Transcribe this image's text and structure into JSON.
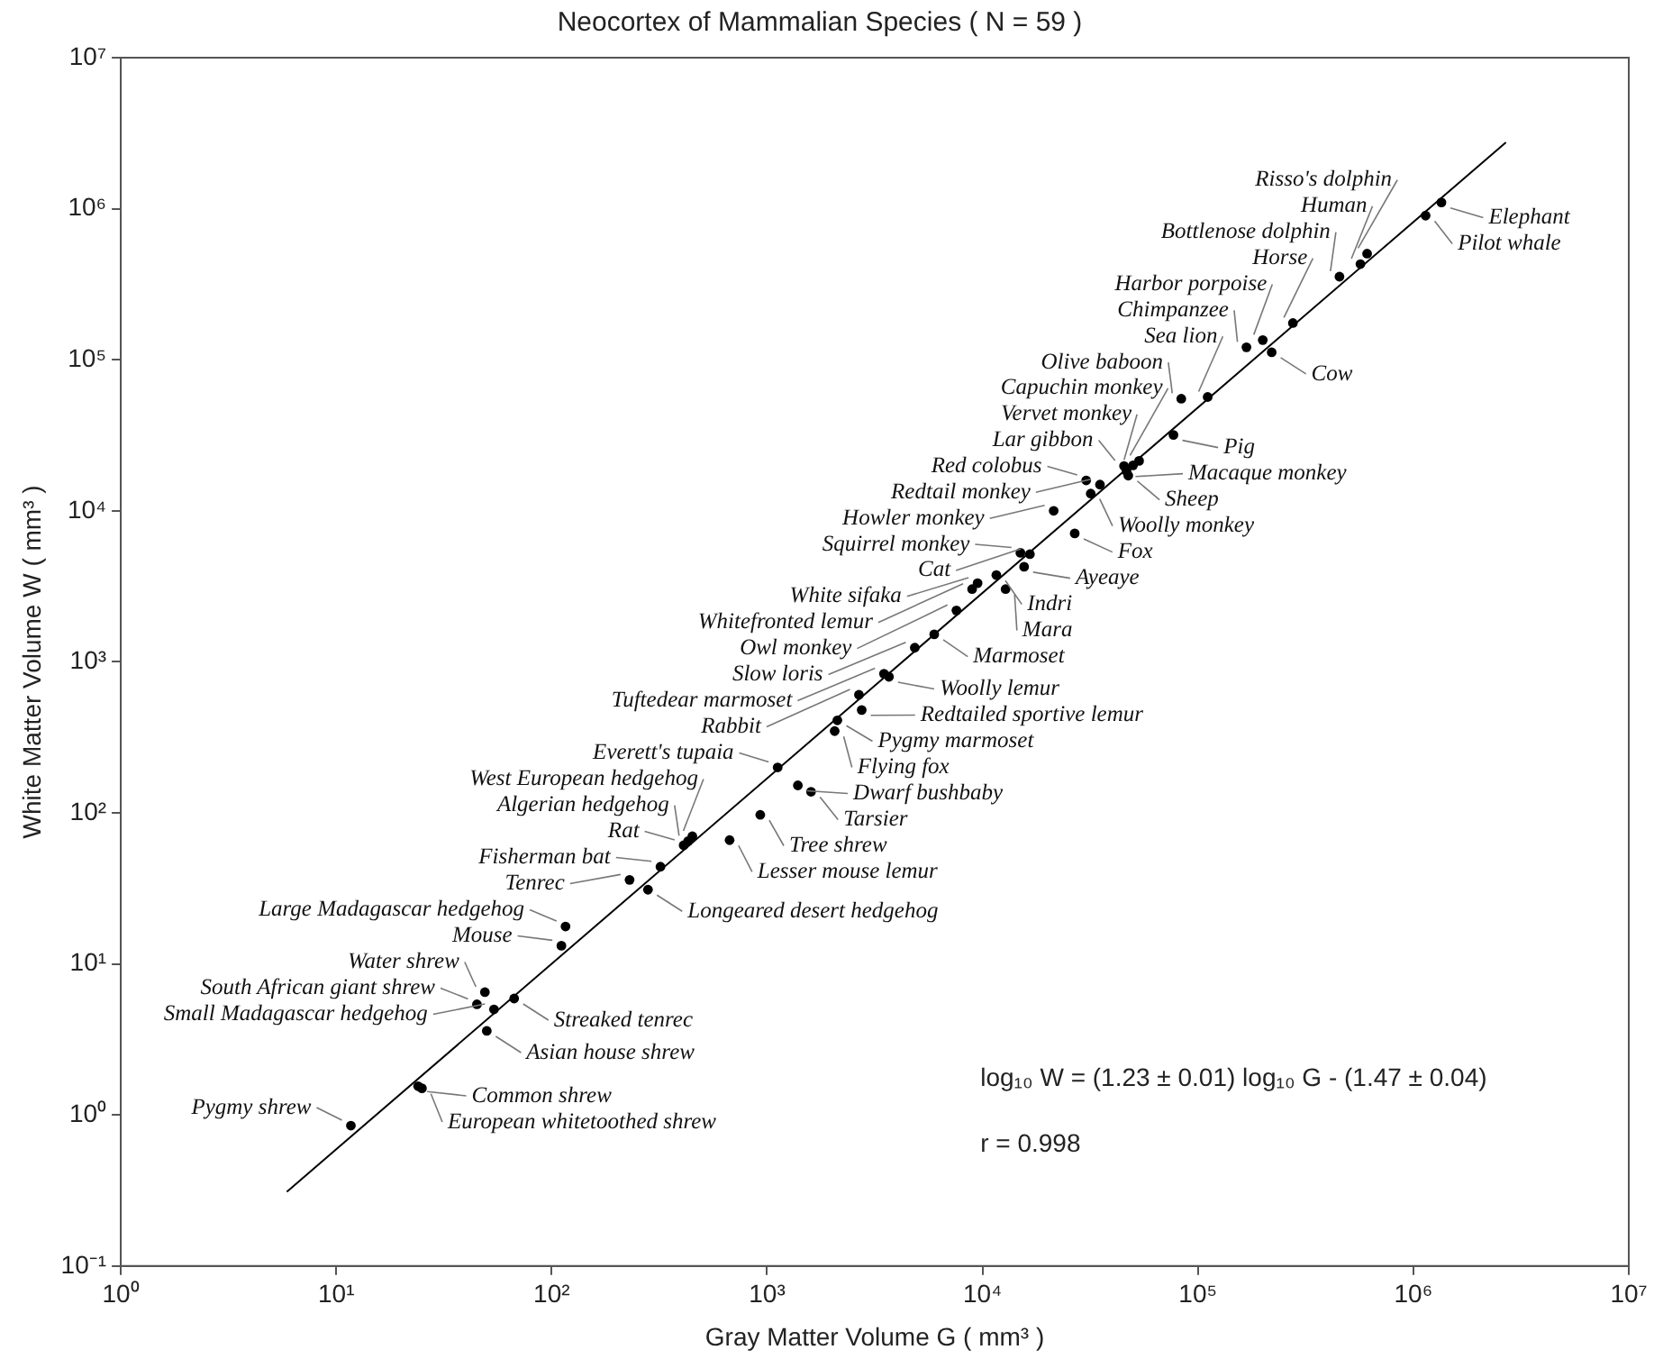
{
  "chart_data": {
    "type": "scatter",
    "title": "Neocortex of Mammalian Species ( N = 59 )",
    "xlabel": "Gray Matter Volume G ( mm³ )",
    "ylabel": "White Matter Volume W ( mm³ )",
    "log": "xy",
    "grid": false,
    "legend": false,
    "marker": "circle",
    "xlim": [
      1,
      10000000
    ],
    "ylim": [
      0.1,
      10000000
    ],
    "xticks": [
      {
        "value": 1,
        "label": "10⁰"
      },
      {
        "value": 10,
        "label": "10¹"
      },
      {
        "value": 100,
        "label": "10²"
      },
      {
        "value": 1000,
        "label": "10³"
      },
      {
        "value": 10000,
        "label": "10⁴"
      },
      {
        "value": 100000,
        "label": "10⁵"
      },
      {
        "value": 1000000,
        "label": "10⁶"
      },
      {
        "value": 10000000,
        "label": "10⁷"
      }
    ],
    "yticks": [
      {
        "value": 0.1,
        "label": "10⁻¹"
      },
      {
        "value": 1,
        "label": "10⁰"
      },
      {
        "value": 10,
        "label": "10¹"
      },
      {
        "value": 100,
        "label": "10²"
      },
      {
        "value": 1000,
        "label": "10³"
      },
      {
        "value": 10000,
        "label": "10⁴"
      },
      {
        "value": 100000,
        "label": "10⁵"
      },
      {
        "value": 1000000,
        "label": "10⁶"
      },
      {
        "value": 10000000,
        "label": "10⁷"
      }
    ],
    "series": [
      {
        "color": "#000000",
        "x": [
          610000,
          568000,
          454000,
          276000,
          200000,
          168000,
          111000,
          83700,
          53300,
          50000,
          45400,
          30300,
          35100,
          21400,
          15000,
          16600,
          9490,
          8950,
          7570,
          4850,
          3490,
          2670,
          1120,
          450,
          430,
          410,
          320,
          230,
          116,
          111,
          49,
          45,
          54,
          11.7,
          1350000,
          1140000,
          220000,
          77000,
          46600,
          47500,
          31800,
          26800,
          15600,
          11600,
          12800,
          5970,
          3680,
          2750,
          2120,
          2060,
          1390,
          1600,
          930,
          670,
          280,
          67,
          50,
          24,
          25
        ],
        "values": [
          504000,
          430000,
          355000,
          175000,
          135000,
          121000,
          56700,
          55200,
          21400,
          20000,
          19800,
          15900,
          14900,
          10000,
          5270,
          5160,
          3320,
          3030,
          2190,
          1240,
          834,
          605,
          200,
          70,
          65,
          61,
          44,
          36,
          17.7,
          13.2,
          6.5,
          5.4,
          5.0,
          0.85,
          1100000,
          900000,
          112000,
          31800,
          18300,
          17100,
          13000,
          7080,
          4260,
          3750,
          3030,
          1520,
          796,
          480,
          410,
          348,
          152,
          138,
          97,
          66,
          31,
          5.9,
          3.6,
          1.55,
          1.5
        ]
      },
      {
        "type": "line",
        "color": "#000000",
        "marker": "none",
        "x": [
          5.9,
          2690000
        ],
        "values": [
          0.31,
          2750000
        ]
      }
    ],
    "annotations": [
      {
        "text": "Risso's dolphin",
        "x": 610000,
        "y": 504000
      },
      {
        "text": "Human",
        "x": 568000,
        "y": 430000
      },
      {
        "text": "Bottlenose dolphin",
        "x": 454000,
        "y": 355000
      },
      {
        "text": "Horse",
        "x": 276000,
        "y": 175000
      },
      {
        "text": "Harbor porpoise",
        "x": 200000,
        "y": 135000
      },
      {
        "text": "Chimpanzee",
        "x": 168000,
        "y": 121000
      },
      {
        "text": "Sea lion",
        "x": 111000,
        "y": 56700
      },
      {
        "text": "Olive baboon",
        "x": 83700,
        "y": 55200
      },
      {
        "text": "Capuchin monkey",
        "x": 53300,
        "y": 21400
      },
      {
        "text": "Vervet monkey",
        "x": 50000,
        "y": 20000
      },
      {
        "text": "Lar gibbon",
        "x": 45400,
        "y": 19800
      },
      {
        "text": "Red colobus",
        "x": 30300,
        "y": 15900
      },
      {
        "text": "Redtail monkey",
        "x": 35100,
        "y": 14900
      },
      {
        "text": "Howler monkey",
        "x": 21400,
        "y": 10000
      },
      {
        "text": "Squirrel monkey",
        "x": 15000,
        "y": 5270
      },
      {
        "text": "Cat",
        "x": 16600,
        "y": 5160
      },
      {
        "text": "White sifaka",
        "x": 9490,
        "y": 3320
      },
      {
        "text": "Whitefronted lemur",
        "x": 8950,
        "y": 3030
      },
      {
        "text": "Owl monkey",
        "x": 7570,
        "y": 2190
      },
      {
        "text": "Slow loris",
        "x": 4850,
        "y": 1240
      },
      {
        "text": "Tuftedear marmoset",
        "x": 3490,
        "y": 834
      },
      {
        "text": "Rabbit",
        "x": 2670,
        "y": 605
      },
      {
        "text": "Everett's tupaia",
        "x": 1120,
        "y": 200
      },
      {
        "text": "West European hedgehog",
        "x": 450,
        "y": 70
      },
      {
        "text": "Algerian hedgehog",
        "x": 430,
        "y": 65
      },
      {
        "text": "Rat",
        "x": 410,
        "y": 61
      },
      {
        "text": "Fisherman bat",
        "x": 320,
        "y": 44
      },
      {
        "text": "Tenrec",
        "x": 230,
        "y": 36
      },
      {
        "text": "Large Madagascar hedgehog",
        "x": 116,
        "y": 17.7
      },
      {
        "text": "Mouse",
        "x": 111,
        "y": 13.2
      },
      {
        "text": "Water shrew",
        "x": 49,
        "y": 6.5
      },
      {
        "text": "South African giant shrew",
        "x": 45,
        "y": 5.4
      },
      {
        "text": "Small Madagascar hedgehog",
        "x": 54,
        "y": 5.0
      },
      {
        "text": "Pygmy shrew",
        "x": 11.7,
        "y": 0.85
      },
      {
        "text": "Elephant",
        "x": 1350000,
        "y": 1100000
      },
      {
        "text": "Pilot whale",
        "x": 1140000,
        "y": 900000
      },
      {
        "text": "Cow",
        "x": 220000,
        "y": 112000
      },
      {
        "text": "Pig",
        "x": 77000,
        "y": 31800
      },
      {
        "text": "Macaque monkey",
        "x": 46600,
        "y": 18300
      },
      {
        "text": "Sheep",
        "x": 47500,
        "y": 17100
      },
      {
        "text": "Woolly monkey",
        "x": 31800,
        "y": 13000
      },
      {
        "text": "Fox",
        "x": 26800,
        "y": 7080
      },
      {
        "text": "Ayeaye",
        "x": 15600,
        "y": 4260
      },
      {
        "text": "Indri",
        "x": 11600,
        "y": 3750
      },
      {
        "text": "Mara",
        "x": 12800,
        "y": 3030
      },
      {
        "text": "Marmoset",
        "x": 5970,
        "y": 1520
      },
      {
        "text": "Woolly lemur",
        "x": 3680,
        "y": 796
      },
      {
        "text": "Redtailed sportive lemur",
        "x": 2750,
        "y": 480
      },
      {
        "text": "Pygmy marmoset",
        "x": 2120,
        "y": 410
      },
      {
        "text": "Flying fox",
        "x": 2060,
        "y": 348
      },
      {
        "text": "Dwarf bushbaby",
        "x": 1390,
        "y": 152
      },
      {
        "text": "Tarsier",
        "x": 1600,
        "y": 138
      },
      {
        "text": "Tree shrew",
        "x": 930,
        "y": 97
      },
      {
        "text": "Lesser mouse lemur",
        "x": 670,
        "y": 66
      },
      {
        "text": "Longeared desert hedgehog",
        "x": 280,
        "y": 31
      },
      {
        "text": "Streaked tenrec",
        "x": 67,
        "y": 5.9
      },
      {
        "text": "Asian house shrew",
        "x": 50,
        "y": 3.6
      },
      {
        "text": "Common shrew",
        "x": 24,
        "y": 1.55
      },
      {
        "text": "European whitetoothed shrew",
        "x": 25,
        "y": 1.5
      },
      "log₁₀ W = (1.23 ± 0.01) log₁₀ G - (1.47 ± 0.04)",
      "r = 0.998"
    ]
  }
}
